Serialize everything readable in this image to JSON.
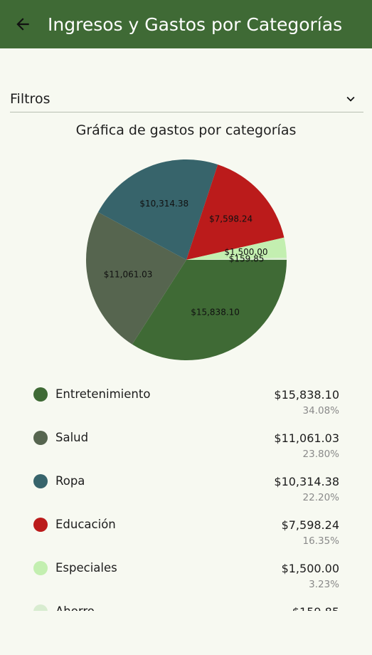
{
  "appbar": {
    "title": "Ingresos y Gastos por Categorías",
    "back_icon": "arrow-left-icon"
  },
  "filters": {
    "label": "Filtros",
    "expand_icon": "chevron-down-icon"
  },
  "chart_data": {
    "type": "pie",
    "title": "Gráfica de gastos por categorías",
    "categories": [
      "Entretenimiento",
      "Salud",
      "Ropa",
      "Educación",
      "Especiales",
      "Ahorro"
    ],
    "values": [
      15838.1,
      11061.03,
      10314.38,
      7598.24,
      1500.0,
      159.85
    ],
    "labels": [
      "$15,838.10",
      "$11,061.03",
      "$10,314.38",
      "$7,598.24",
      "$1,500.00",
      "$159.85"
    ],
    "percentages": [
      "34.08%",
      "23.80%",
      "22.20%",
      "16.35%",
      "3.23%",
      ""
    ],
    "colors": [
      "#3f6a35",
      "#56654f",
      "#37646b",
      "#bb1b1b",
      "#c3efb0",
      "#d8ecd0"
    ],
    "start": "3 o'clock",
    "direction": "clockwise"
  }
}
